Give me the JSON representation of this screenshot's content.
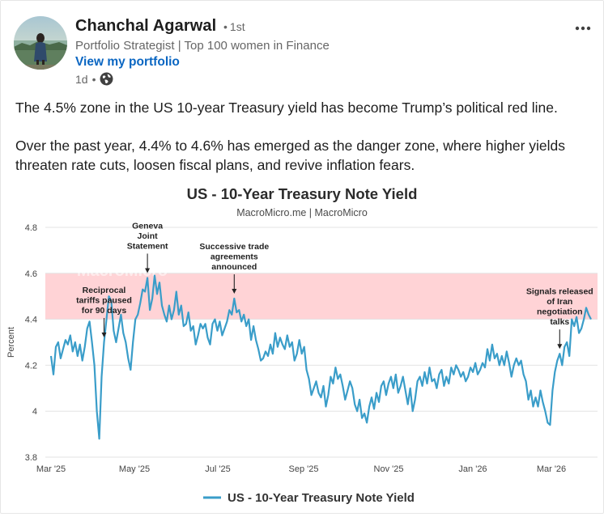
{
  "author": {
    "name": "Chanchal Agarwal",
    "degree": "1st",
    "headline": "Portfolio Strategist | Top 100 women in Finance",
    "link": "View my portfolio",
    "time": "1d",
    "visibility_icon": "globe-icon"
  },
  "post": {
    "paragraph1": "The 4.5% zone in the US 10-year Treasury yield has become Trump’s political red line.",
    "paragraph2": "Over the past year, 4.4% to 4.6% has emerged as the danger zone, where higher yields threaten rate cuts, loosen fiscal plans, and revive inflation fears."
  },
  "colors": {
    "line": "#3a9dc9",
    "band": "#ffd3d6",
    "link": "#0a66c2"
  },
  "chart_data": {
    "type": "line",
    "title": "US - 10-Year Treasury Note Yield",
    "subtitle": "MacroMicro.me | MacroMicro",
    "watermark": "MacroMicro",
    "ylabel": "Percent",
    "ylim": [
      3.8,
      4.8
    ],
    "yticks": [
      "3.8",
      "4",
      "4.2",
      "4.4",
      "4.6",
      "4.8"
    ],
    "xticks": [
      "Mar '25",
      "May '25",
      "Jul '25",
      "Sep '25",
      "Nov '25",
      "Jan '26",
      "Mar '26"
    ],
    "shaded_band": [
      4.4,
      4.6
    ],
    "legend": "US - 10-Year Treasury Note Yield",
    "annotations": [
      {
        "text": [
          "Reciprocal",
          "tariffs paused",
          "for 90 days"
        ],
        "index": 22
      },
      {
        "text": [
          "Geneva",
          "Joint",
          "Statement"
        ],
        "index": 40
      },
      {
        "text": [
          "Successive trade",
          "agreements",
          "announced"
        ],
        "index": 76
      },
      {
        "text": [
          "Signals released",
          "of Iran",
          "negotiation",
          "talks"
        ],
        "index": 211
      }
    ],
    "series": [
      {
        "name": "US - 10-Year Treasury Note Yield",
        "values": [
          4.24,
          4.16,
          4.28,
          4.3,
          4.23,
          4.27,
          4.31,
          4.29,
          4.33,
          4.26,
          4.3,
          4.24,
          4.29,
          4.22,
          4.28,
          4.36,
          4.39,
          4.3,
          4.2,
          4.0,
          3.88,
          4.15,
          4.3,
          4.4,
          4.5,
          4.48,
          4.35,
          4.3,
          4.36,
          4.42,
          4.34,
          4.3,
          4.23,
          4.18,
          4.3,
          4.4,
          4.42,
          4.47,
          4.53,
          4.52,
          4.58,
          4.44,
          4.49,
          4.59,
          4.51,
          4.56,
          4.46,
          4.42,
          4.39,
          4.46,
          4.4,
          4.44,
          4.52,
          4.42,
          4.46,
          4.37,
          4.38,
          4.43,
          4.35,
          4.37,
          4.29,
          4.33,
          4.38,
          4.36,
          4.38,
          4.32,
          4.29,
          4.38,
          4.4,
          4.35,
          4.39,
          4.33,
          4.36,
          4.39,
          4.44,
          4.42,
          4.49,
          4.43,
          4.44,
          4.39,
          4.42,
          4.37,
          4.4,
          4.31,
          4.37,
          4.31,
          4.27,
          4.22,
          4.23,
          4.26,
          4.24,
          4.29,
          4.25,
          4.34,
          4.28,
          4.32,
          4.29,
          4.27,
          4.33,
          4.28,
          4.3,
          4.22,
          4.25,
          4.31,
          4.25,
          4.28,
          4.18,
          4.14,
          4.07,
          4.1,
          4.13,
          4.08,
          4.06,
          4.11,
          4.02,
          4.07,
          4.15,
          4.12,
          4.19,
          4.14,
          4.16,
          4.11,
          4.05,
          4.09,
          4.13,
          4.1,
          4.03,
          4.0,
          4.05,
          3.97,
          3.99,
          3.95,
          4.02,
          4.06,
          4.01,
          4.08,
          4.04,
          4.11,
          4.13,
          4.07,
          4.12,
          4.15,
          4.1,
          4.16,
          4.08,
          4.11,
          4.15,
          4.09,
          4.03,
          4.1,
          4.0,
          4.05,
          4.13,
          4.15,
          4.11,
          4.17,
          4.12,
          4.19,
          4.13,
          4.14,
          4.1,
          4.16,
          4.18,
          4.11,
          4.15,
          4.12,
          4.19,
          4.16,
          4.2,
          4.18,
          4.15,
          4.17,
          4.13,
          4.15,
          4.19,
          4.17,
          4.21,
          4.16,
          4.18,
          4.21,
          4.19,
          4.27,
          4.22,
          4.29,
          4.23,
          4.25,
          4.2,
          4.24,
          4.2,
          4.26,
          4.21,
          4.15,
          4.2,
          4.23,
          4.2,
          4.22,
          4.16,
          4.13,
          4.05,
          4.09,
          4.02,
          4.06,
          4.02,
          4.09,
          4.04,
          4.0,
          3.95,
          3.94,
          4.09,
          4.17,
          4.22,
          4.25,
          4.2,
          4.28,
          4.3,
          4.24,
          4.4,
          4.37,
          4.41,
          4.34,
          4.36,
          4.4,
          4.45,
          4.42,
          4.4
        ]
      }
    ]
  }
}
